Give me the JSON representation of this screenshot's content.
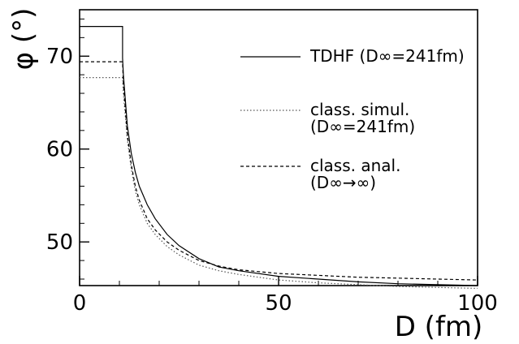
{
  "chart_data": {
    "type": "line",
    "xlabel": "D (fm)",
    "ylabel": "φ (°)",
    "xlim": [
      0,
      100
    ],
    "ylim": [
      45.3,
      75
    ],
    "x_ticks": [
      0,
      50,
      100
    ],
    "y_ticks": [
      50,
      60,
      70
    ],
    "grid": false,
    "legend_position": "top-right",
    "series": [
      {
        "name": "TDHF (D∞=241fm)",
        "style": "solid",
        "points": [
          [
            0,
            73.2
          ],
          [
            10.8,
            73.2
          ],
          [
            10.8,
            69.8
          ],
          [
            11,
            68
          ],
          [
            12,
            62.5
          ],
          [
            13,
            59.5
          ],
          [
            14,
            57.5
          ],
          [
            15,
            56
          ],
          [
            17,
            54
          ],
          [
            19,
            52.5
          ],
          [
            22,
            50.8
          ],
          [
            25,
            49.6
          ],
          [
            30,
            48.2
          ],
          [
            35,
            47.3
          ],
          [
            40,
            46.9
          ],
          [
            50,
            46.3
          ],
          [
            60,
            46.0
          ],
          [
            70,
            45.7
          ],
          [
            80,
            45.5
          ],
          [
            90,
            45.4
          ],
          [
            100,
            45.3
          ]
        ]
      },
      {
        "name": "class. simul. (D∞=241fm)",
        "style": "dotted",
        "points": [
          [
            0,
            67.7
          ],
          [
            10.8,
            67.7
          ],
          [
            11,
            66
          ],
          [
            12,
            61
          ],
          [
            13,
            57.8
          ],
          [
            14,
            55.5
          ],
          [
            15,
            54
          ],
          [
            17,
            52
          ],
          [
            19,
            50.8
          ],
          [
            22,
            49.5
          ],
          [
            25,
            48.6
          ],
          [
            30,
            47.5
          ],
          [
            35,
            46.9
          ],
          [
            40,
            46.5
          ],
          [
            50,
            45.9
          ],
          [
            60,
            45.6
          ],
          [
            70,
            45.4
          ],
          [
            80,
            45.2
          ],
          [
            90,
            45.1
          ],
          [
            100,
            45.0
          ]
        ]
      },
      {
        "name": "class. anal. (D∞→∞)",
        "style": "dashed",
        "points": [
          [
            0,
            69.4
          ],
          [
            10.8,
            69.4
          ],
          [
            11,
            67
          ],
          [
            12,
            61.5
          ],
          [
            13,
            58.3
          ],
          [
            14,
            56
          ],
          [
            15,
            54.5
          ],
          [
            17,
            52.5
          ],
          [
            19,
            51.3
          ],
          [
            22,
            50
          ],
          [
            25,
            49.1
          ],
          [
            30,
            48
          ],
          [
            35,
            47.4
          ],
          [
            40,
            47
          ],
          [
            50,
            46.6
          ],
          [
            60,
            46.4
          ],
          [
            70,
            46.2
          ],
          [
            80,
            46.1
          ],
          [
            90,
            46.0
          ],
          [
            100,
            45.9
          ]
        ]
      }
    ],
    "legend_texts": {
      "tdhf": "TDHF (D∞=241fm)",
      "simul_line1": "class. simul.",
      "simul_line2": "(D∞=241fm)",
      "anal_line1": "class. anal.",
      "anal_line2": "(D∞→∞)"
    }
  }
}
